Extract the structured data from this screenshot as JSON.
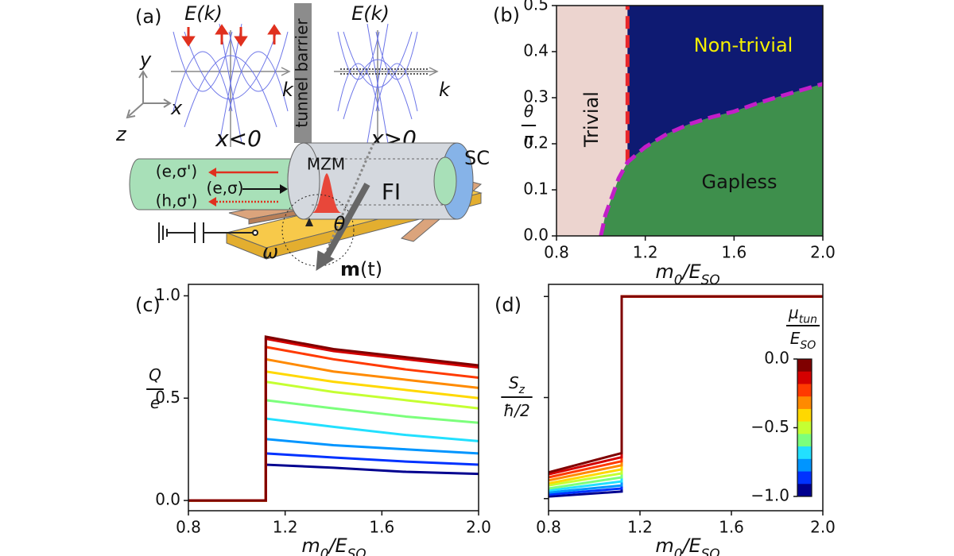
{
  "diagram": {
    "panel_label": "(a)",
    "coordinate_axes": {
      "x": "x",
      "y": "y",
      "z": "z"
    },
    "left_band": {
      "title": "E(k)",
      "k_label": "k",
      "region": "x<0"
    },
    "barrier": "tunnel barrier",
    "right_band": {
      "title": "E(k)",
      "k_label": "k",
      "region": "x>0"
    },
    "device": {
      "electron_out": "(e,σ')",
      "electron_in": "(e,σ)",
      "hole_out": "(h,σ')",
      "mzm": "MZM",
      "fi": "FI",
      "sc": "SC",
      "theta": "θ",
      "omega": "ω",
      "magnetization": [
        "m",
        "(t)"
      ]
    }
  },
  "chart_data": [
    {
      "type": "phase",
      "panel_label": "(b)",
      "xlabel": [
        "m",
        "0",
        "/E",
        "SO"
      ],
      "ylabel": {
        "numerator": [
          "θ"
        ],
        "denominator": [
          "π"
        ]
      },
      "xlim": [
        0.8,
        2.0
      ],
      "ylim": [
        0,
        0.5
      ],
      "xticks": [
        0.8,
        1.2,
        1.6,
        {
          "value": 2,
          "label": "2.0"
        }
      ],
      "yticks": [
        {
          "value": 0,
          "label": "0.0"
        },
        0.1,
        0.2,
        0.3,
        0.4,
        0.5
      ],
      "regions": [
        {
          "label": "Trivial",
          "color": "#ecd4cf",
          "label_color": "#111"
        },
        {
          "label": "Non-trivial",
          "color": "#0e1a72",
          "label_color": "#f5f000"
        },
        {
          "label": "Gapless",
          "color": "#3e8f4c",
          "label_color": "#111"
        }
      ],
      "lines": [
        {
          "x": [
            1.12,
            1.12
          ],
          "values": [
            0.16,
            0.5
          ],
          "color": "#e8262a",
          "dashed": true
        },
        {
          "x": [
            1.0,
            1.02,
            1.05,
            1.08,
            1.12,
            1.2,
            1.3,
            1.4,
            1.5,
            1.6,
            1.7,
            1.8,
            1.9,
            2.0
          ],
          "values": [
            0,
            0.045,
            0.085,
            0.125,
            0.16,
            0.193,
            0.222,
            0.243,
            0.258,
            0.27,
            0.287,
            0.302,
            0.316,
            0.33
          ],
          "color": "#c21ec8",
          "dashed": true
        }
      ]
    },
    {
      "type": "line",
      "panel_label": "(c)",
      "xlabel": [
        "m",
        "0",
        "/E",
        "SO"
      ],
      "ylabel": {
        "numerator": [
          "Q"
        ],
        "denominator": [
          "e"
        ]
      },
      "xlim": [
        0.8,
        2.0
      ],
      "ylim": [
        -0.05,
        1.056
      ],
      "xticks": [
        0.8,
        1.2,
        1.6,
        {
          "value": 2,
          "label": "2.0"
        }
      ],
      "yticks": [
        {
          "value": 0,
          "label": "0.0"
        },
        0.5,
        {
          "value": 1,
          "label": "1.0"
        }
      ],
      "x": [
        0.8,
        1.12,
        1.12,
        1.4,
        1.7,
        2.0
      ],
      "series": [
        {
          "color": "#7f0000",
          "values": [
            0,
            0,
            0.8,
            0.74,
            0.7,
            0.66
          ]
        },
        {
          "color": "#d40000",
          "values": [
            0,
            0,
            0.79,
            0.73,
            0.69,
            0.65
          ]
        },
        {
          "color": "#ff3a00",
          "values": [
            0,
            0,
            0.75,
            0.69,
            0.64,
            0.6
          ]
        },
        {
          "color": "#ff8a00",
          "values": [
            0,
            0,
            0.69,
            0.63,
            0.59,
            0.55
          ]
        },
        {
          "color": "#ffd800",
          "values": [
            0,
            0,
            0.63,
            0.58,
            0.54,
            0.5
          ]
        },
        {
          "color": "#c5ff32",
          "values": [
            0,
            0,
            0.58,
            0.53,
            0.49,
            0.45
          ]
        },
        {
          "color": "#7cff7c",
          "values": [
            0,
            0,
            0.49,
            0.45,
            0.41,
            0.38
          ]
        },
        {
          "color": "#22e0ff",
          "values": [
            0,
            0,
            0.4,
            0.36,
            0.32,
            0.29
          ]
        },
        {
          "color": "#0095ff",
          "values": [
            0,
            0,
            0.3,
            0.27,
            0.25,
            0.23
          ]
        },
        {
          "color": "#0032ff",
          "values": [
            0,
            0,
            0.23,
            0.21,
            0.19,
            0.175
          ]
        },
        {
          "color": "#00008f",
          "values": [
            0,
            0,
            0.175,
            0.16,
            0.14,
            0.13
          ]
        }
      ]
    },
    {
      "type": "line",
      "panel_label": "(d)",
      "xlabel": [
        "m",
        "0",
        "/E",
        "SO"
      ],
      "ylabel": {
        "numerator": [
          "S",
          "z"
        ],
        "denominator": [
          "ħ/2"
        ]
      },
      "xlim": [
        0.8,
        2.0
      ],
      "ylim": [
        -1.12,
        1.12
      ],
      "xticks": [
        0.8,
        1.2,
        1.6,
        {
          "value": 2,
          "label": "2.0"
        }
      ],
      "yticks": [
        -1,
        0,
        1
      ],
      "ytick_labels": false,
      "x": [
        0.8,
        1.12,
        1.12,
        2.0
      ],
      "series": [
        {
          "color": "#7f0000",
          "values": [
            -0.74,
            -0.55,
            1,
            1
          ]
        },
        {
          "color": "#d40000",
          "values": [
            -0.76,
            -0.59,
            1,
            1
          ]
        },
        {
          "color": "#ff3a00",
          "values": [
            -0.79,
            -0.63,
            1,
            1
          ]
        },
        {
          "color": "#ff8a00",
          "values": [
            -0.82,
            -0.67,
            1,
            1
          ]
        },
        {
          "color": "#ffd800",
          "values": [
            -0.85,
            -0.71,
            1,
            1
          ]
        },
        {
          "color": "#c5ff32",
          "values": [
            -0.87,
            -0.75,
            1,
            1
          ]
        },
        {
          "color": "#7cff7c",
          "values": [
            -0.9,
            -0.79,
            1,
            1
          ]
        },
        {
          "color": "#22e0ff",
          "values": [
            -0.92,
            -0.83,
            1,
            1
          ]
        },
        {
          "color": "#0095ff",
          "values": [
            -0.94,
            -0.87,
            1,
            1
          ]
        },
        {
          "color": "#0032ff",
          "values": [
            -0.96,
            -0.9,
            1,
            1
          ]
        },
        {
          "color": "#00008f",
          "values": [
            -0.98,
            -0.93,
            1,
            1
          ]
        }
      ],
      "colorbar": {
        "label": {
          "numerator": [
            "μ",
            "tun"
          ],
          "denominator": [
            "E",
            "SO"
          ]
        },
        "lim": [
          -1.0,
          0.0
        ],
        "ticks": [
          {
            "value": 0,
            "label": "0.0"
          },
          {
            "value": -0.5,
            "label": "−0.5"
          },
          {
            "value": -1,
            "label": "−1.0"
          }
        ]
      }
    }
  ]
}
